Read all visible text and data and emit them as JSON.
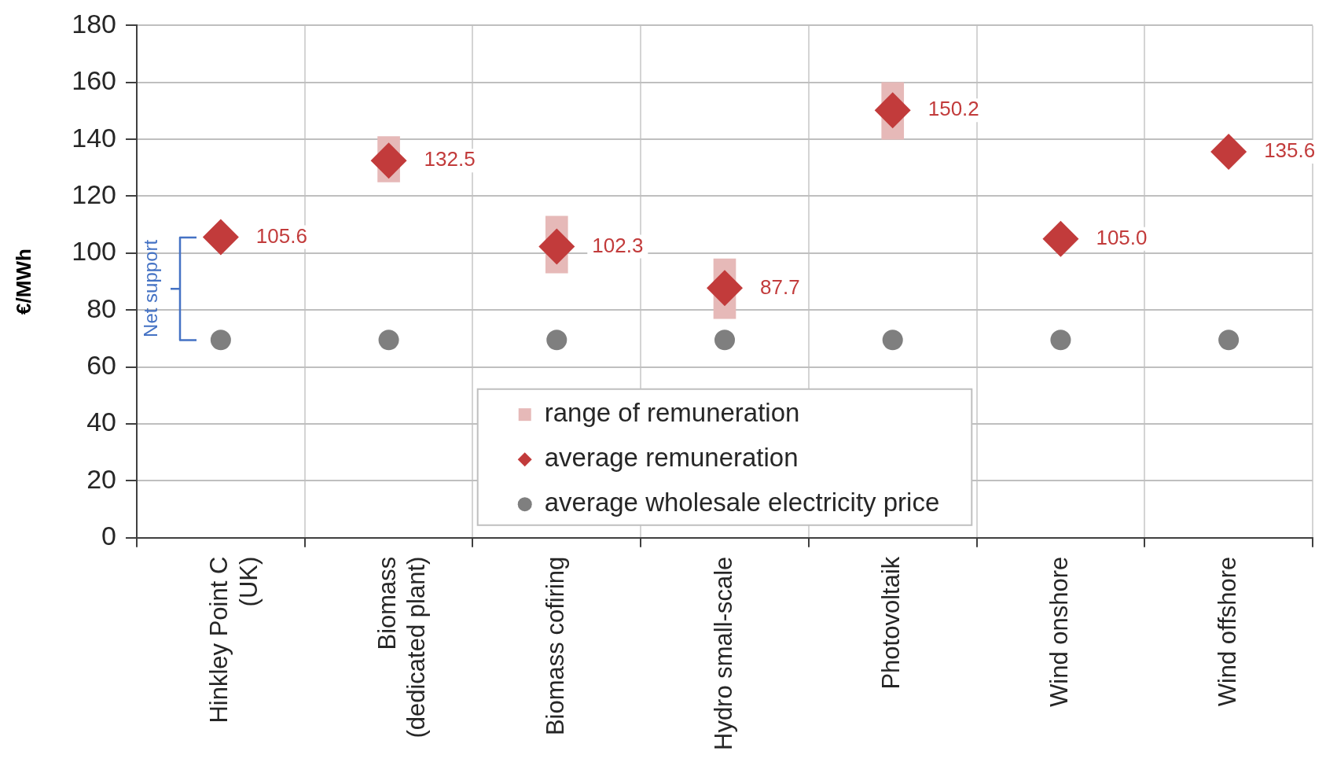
{
  "chart_data": {
    "type": "scatter",
    "categories": [
      "Hinkley Point C\n(UK)",
      "Biomass\n(dedicated plant)",
      "Biomass cofiring",
      "Hydro small-scale",
      "Photovoltaik",
      "Wind onshore",
      "Wind offshore"
    ],
    "series": [
      {
        "name": "range of remuneration",
        "type": "bar",
        "color": "#e6b9b8",
        "base": [
          null,
          125,
          93,
          77,
          140,
          null,
          null
        ],
        "values": [
          null,
          16,
          20,
          21,
          20,
          null,
          null
        ]
      },
      {
        "name": "average remuneration",
        "marker": "diamond",
        "color": "#c23b3b",
        "values": [
          105.6,
          132.5,
          102.3,
          87.7,
          150.2,
          105.0,
          135.6
        ],
        "value_labels": [
          "105.6",
          "132.5",
          "102.3",
          "87.7",
          "150.2",
          "105.0",
          "135.6"
        ]
      },
      {
        "name": "average wholesale electricity price",
        "marker": "circle",
        "color": "#7f7f7f",
        "values": [
          69.5,
          69.5,
          69.5,
          69.5,
          69.5,
          69.5,
          69.5
        ]
      }
    ],
    "ylabel": "€/MWh",
    "ylim": [
      0,
      180
    ],
    "yticks": [
      0,
      20,
      40,
      60,
      80,
      100,
      120,
      140,
      160,
      180
    ],
    "grid": true,
    "legend": "bottom",
    "annotations": [
      "Net support"
    ]
  }
}
